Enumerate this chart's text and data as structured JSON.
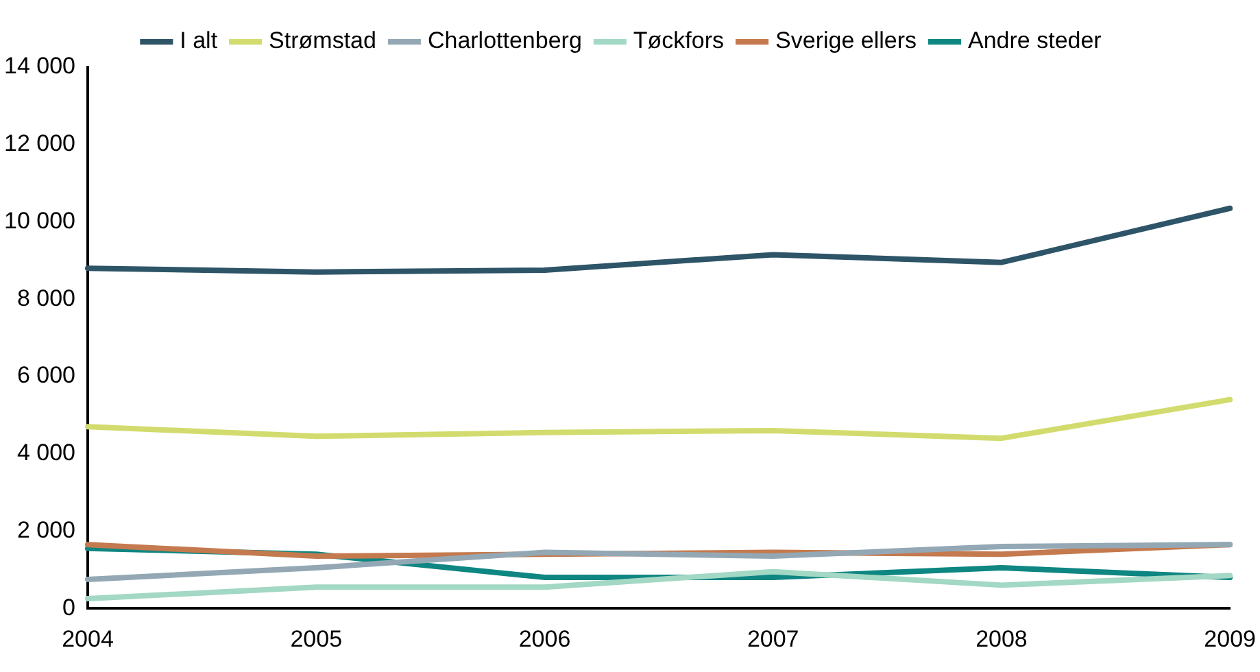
{
  "chart_data": {
    "type": "line",
    "categories": [
      "2004",
      "2005",
      "2006",
      "2007",
      "2008",
      "2009"
    ],
    "series": [
      {
        "name": "I alt",
        "color": "#2e5468",
        "values": [
          8800,
          8700,
          8750,
          9150,
          8950,
          10350
        ]
      },
      {
        "name": "Strømstad",
        "color": "#d2dc6e",
        "values": [
          4700,
          4450,
          4550,
          4600,
          4400,
          5400
        ]
      },
      {
        "name": "Charlottenberg",
        "color": "#93a8b4",
        "values": [
          750,
          1050,
          1450,
          1350,
          1600,
          1650
        ]
      },
      {
        "name": "Tøckfors",
        "color": "#a3d8c4",
        "values": [
          250,
          550,
          550,
          950,
          600,
          850
        ]
      },
      {
        "name": "Sverige ellers",
        "color": "#c47a4e",
        "values": [
          1650,
          1350,
          1400,
          1450,
          1400,
          1650
        ]
      },
      {
        "name": "Andre steder",
        "color": "#0e8682",
        "values": [
          1550,
          1400,
          800,
          800,
          1050,
          800
        ]
      }
    ],
    "ylim": [
      0,
      14000
    ],
    "yticks": [
      {
        "value": 0,
        "label": "0"
      },
      {
        "value": 2000,
        "label": "2 000"
      },
      {
        "value": 4000,
        "label": "4 000"
      },
      {
        "value": 6000,
        "label": "6 000"
      },
      {
        "value": 8000,
        "label": "8 000"
      },
      {
        "value": 10000,
        "label": "10 000"
      },
      {
        "value": 12000,
        "label": "12 000"
      },
      {
        "value": 14000,
        "label": "14 000"
      }
    ],
    "grid": false,
    "legend": "top",
    "marker": "none",
    "line_style": "solid"
  }
}
